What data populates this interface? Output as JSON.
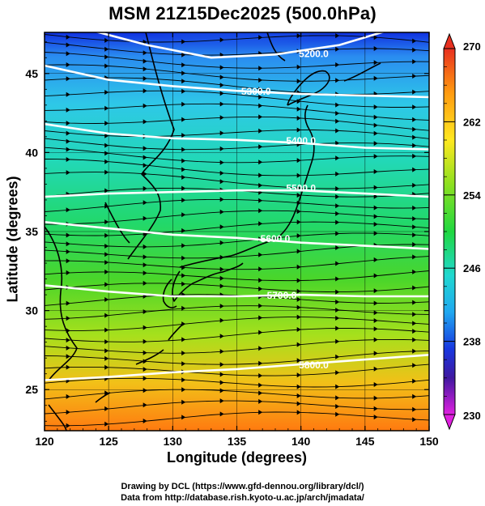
{
  "title": "MSM 21Z15Dec2025 (500.0hPa)",
  "x_axis": {
    "label": "Longitude (degrees)",
    "range": [
      120,
      150
    ],
    "ticks": [
      "120",
      "125",
      "130",
      "135",
      "140",
      "145",
      "150"
    ]
  },
  "y_axis": {
    "label": "Latitude  (degrees)",
    "range": [
      22.4,
      47.6
    ],
    "ticks": [
      "25",
      "30",
      "35",
      "40",
      "45"
    ]
  },
  "colorbar": {
    "quantity": "temperature",
    "range": [
      230,
      270
    ],
    "tick_labels": [
      "270",
      "262",
      "254",
      "246",
      "238",
      "230"
    ]
  },
  "contours": {
    "quantity": "geopotential height",
    "lines": [
      {
        "label": "5200.0",
        "level": 5200,
        "label_lon": 141.0,
        "label_lat": 46.3
      },
      {
        "label": "5300.0",
        "level": 5300,
        "label_lon": 136.5,
        "label_lat": 43.9
      },
      {
        "label": "5400.0",
        "level": 5400,
        "label_lon": 140.0,
        "label_lat": 40.8
      },
      {
        "label": "5500.0",
        "level": 5500,
        "label_lon": 140.0,
        "label_lat": 37.8
      },
      {
        "label": "5600.0",
        "level": 5600,
        "label_lon": 138.0,
        "label_lat": 34.6
      },
      {
        "label": "5700.0",
        "level": 5700,
        "label_lon": 138.5,
        "label_lat": 31.0
      },
      {
        "label": "5800.0",
        "level": 5800,
        "label_lon": 141.0,
        "label_lat": 26.6
      }
    ]
  },
  "wind": {
    "description": "streamlines",
    "prevailing_direction": "westerly"
  },
  "credits": {
    "line1": "Drawing by DCL (https://www.gfd-dennou.org/library/dcl/)",
    "line2": "Data from http://database.rish.kyoto-u.ac.jp/arch/jmadata/"
  },
  "colors": {
    "contour": "#ffffff",
    "coast": "#000000"
  }
}
